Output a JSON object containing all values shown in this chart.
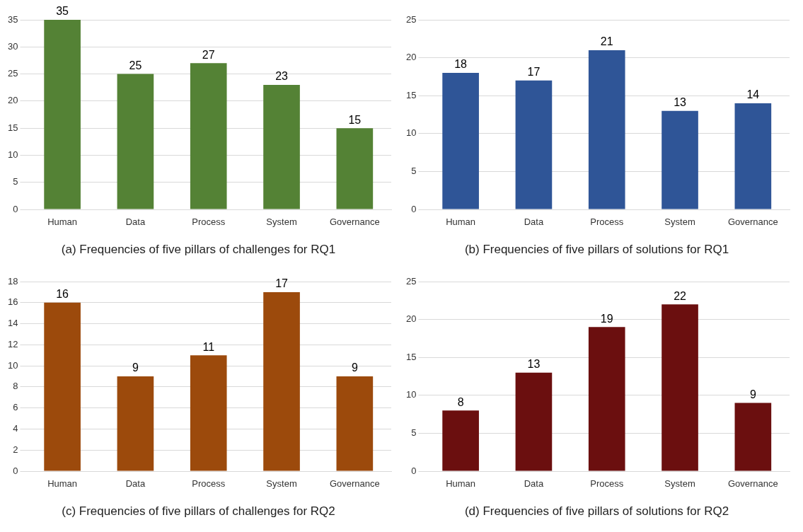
{
  "chart_data": [
    {
      "type": "bar",
      "title": "(a) Frequencies of five pillars of challenges for RQ1",
      "categories": [
        "Human",
        "Data",
        "Process",
        "System",
        "Governance"
      ],
      "values": [
        35,
        25,
        27,
        23,
        15
      ],
      "color": "#548235",
      "ylim": [
        0,
        35
      ],
      "yticks": [
        0,
        5,
        10,
        15,
        20,
        25,
        30,
        35
      ],
      "grid": "y",
      "data_labels": true
    },
    {
      "type": "bar",
      "title": "(b) Frequencies of five pillars of solutions for RQ1",
      "categories": [
        "Human",
        "Data",
        "Process",
        "System",
        "Governance"
      ],
      "values": [
        18,
        17,
        21,
        13,
        14
      ],
      "color": "#2f5597",
      "ylim": [
        0,
        25
      ],
      "yticks": [
        0,
        5,
        10,
        15,
        20,
        25
      ],
      "grid": "y",
      "data_labels": true
    },
    {
      "type": "bar",
      "title": "(c) Frequencies of five pillars of challenges for RQ2",
      "categories": [
        "Human",
        "Data",
        "Process",
        "System",
        "Governance"
      ],
      "values": [
        16,
        9,
        11,
        17,
        9
      ],
      "color": "#9c4a0c",
      "ylim": [
        0,
        18
      ],
      "yticks": [
        0,
        2,
        4,
        6,
        8,
        10,
        12,
        14,
        16,
        18
      ],
      "grid": "y",
      "data_labels": true
    },
    {
      "type": "bar",
      "title": "(d) Frequencies of five pillars of solutions for RQ2",
      "categories": [
        "Human",
        "Data",
        "Process",
        "System",
        "Governance"
      ],
      "values": [
        8,
        13,
        19,
        22,
        9
      ],
      "color": "#6b0f0f",
      "ylim": [
        0,
        25
      ],
      "yticks": [
        0,
        5,
        10,
        15,
        20,
        25
      ],
      "grid": "y",
      "data_labels": true
    }
  ]
}
